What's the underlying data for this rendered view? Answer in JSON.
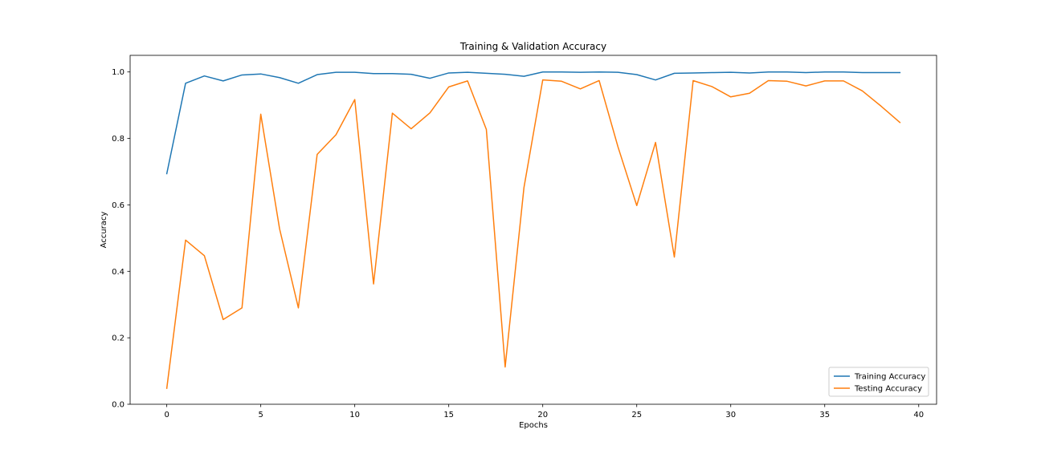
{
  "chart_data": {
    "type": "line",
    "title": "Training & Validation Accuracy",
    "xlabel": "Epochs",
    "ylabel": "Accuracy",
    "xlim": [
      -1.95,
      40.95
    ],
    "ylim": [
      0,
      1.05
    ],
    "xticks": [
      0,
      5,
      10,
      15,
      20,
      25,
      30,
      35,
      40
    ],
    "yticks": [
      0.0,
      0.2,
      0.4,
      0.6,
      0.8,
      1.0
    ],
    "ytick_labels": [
      "0.0",
      "0.2",
      "0.4",
      "0.6",
      "0.8",
      "1.0"
    ],
    "grid": false,
    "legend_position": "lower-right",
    "x": [
      0,
      1,
      2,
      3,
      4,
      5,
      6,
      7,
      8,
      9,
      10,
      11,
      12,
      13,
      14,
      15,
      16,
      17,
      18,
      19,
      20,
      21,
      22,
      23,
      24,
      25,
      26,
      27,
      28,
      29,
      30,
      31,
      32,
      33,
      34,
      35,
      36,
      37,
      38,
      39
    ],
    "series": [
      {
        "name": "Training Accuracy",
        "color": "#1f77b4",
        "values": [
          0.694,
          0.966,
          0.988,
          0.973,
          0.991,
          0.994,
          0.983,
          0.966,
          0.992,
          0.999,
          0.999,
          0.995,
          0.995,
          0.993,
          0.981,
          0.997,
          0.999,
          0.996,
          0.993,
          0.987,
          1.0,
          1.0,
          0.999,
          1.0,
          0.999,
          0.992,
          0.976,
          0.996,
          0.997,
          0.998,
          0.999,
          0.997,
          1.0,
          1.0,
          0.998,
          1.0,
          1.0,
          0.998,
          0.998,
          0.998
        ]
      },
      {
        "name": "Testing Accuracy",
        "color": "#ff7f0e",
        "values": [
          0.048,
          0.494,
          0.447,
          0.255,
          0.29,
          0.873,
          0.528,
          0.29,
          0.752,
          0.811,
          0.917,
          0.362,
          0.876,
          0.829,
          0.877,
          0.955,
          0.973,
          0.827,
          0.112,
          0.652,
          0.976,
          0.972,
          0.949,
          0.974,
          0.775,
          0.598,
          0.788,
          0.443,
          0.974,
          0.956,
          0.925,
          0.936,
          0.974,
          0.972,
          0.958,
          0.973,
          0.973,
          0.943,
          0.897,
          0.848
        ]
      }
    ]
  }
}
